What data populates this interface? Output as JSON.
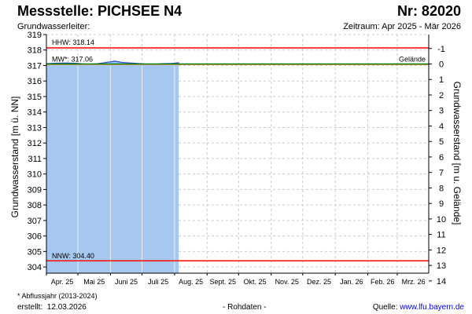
{
  "header": {
    "station_label": "Messstelle: PICHSEE N4",
    "number_label": "Nr: 82020",
    "aquifer_label": "Grundwasserleiter:",
    "period_label": "Zeitraum: Apr 2025 - Mär 2026"
  },
  "footer": {
    "footnote": "* Abflussjahr (2013-2024)",
    "created_label": "erstellt:",
    "created_date": "12.03.2026",
    "raw_data": "- Rohdaten -",
    "source_label": "Quelle:",
    "source_link": "www.lfu.bayern.de"
  },
  "chart_data": {
    "type": "area",
    "ylabel": "Grundwasserstand [m ü. NN]",
    "ylabel_right": "Grundwasserstand [m u. Gelände]",
    "ylim": [
      303.6,
      319.0
    ],
    "yticks": [
      304,
      305,
      306,
      307,
      308,
      309,
      310,
      311,
      312,
      313,
      314,
      315,
      316,
      317,
      318,
      319
    ],
    "yticks_right": [
      -1,
      0,
      1,
      2,
      3,
      4,
      5,
      6,
      7,
      8,
      9,
      10,
      11,
      12,
      13,
      14
    ],
    "ground_level": 317.1,
    "categories": [
      "Apr. 25",
      "Mai 25",
      "Juni 25",
      "Juli 25",
      "Aug. 25",
      "Sept. 25",
      "Okt. 25",
      "Nov. 25",
      "Dez. 25",
      "Jan. 26",
      "Feb. 26",
      "Mrz. 26"
    ],
    "x_start": "2025-04-01",
    "x_end": "2026-03-31",
    "grid": true,
    "reference_lines": [
      {
        "label": "HHW: 318.14",
        "value": 318.14,
        "color": "#ff0000"
      },
      {
        "label": "MW*: 317.06",
        "value": 317.06,
        "color": "#ff9966"
      },
      {
        "label": "NNW: 304.40",
        "value": 304.4,
        "color": "#ff0000"
      },
      {
        "label": "Gelände",
        "value": 317.1,
        "color": "#008000"
      }
    ],
    "series": [
      {
        "x": [
          "2025-04-01",
          "2025-04-10",
          "2025-04-20",
          "2025-04-30",
          "2025-05-10",
          "2025-05-20",
          "2025-05-30",
          "2025-06-05",
          "2025-06-12",
          "2025-06-20",
          "2025-06-30",
          "2025-07-10",
          "2025-07-20",
          "2025-07-30",
          "2025-08-05"
        ],
        "values": [
          317.12,
          317.15,
          317.16,
          317.14,
          317.08,
          317.12,
          317.22,
          317.28,
          317.2,
          317.16,
          317.12,
          317.06,
          317.12,
          317.14,
          317.18
        ],
        "color": "#3355cc",
        "fill": "#a6c8f0"
      }
    ]
  }
}
